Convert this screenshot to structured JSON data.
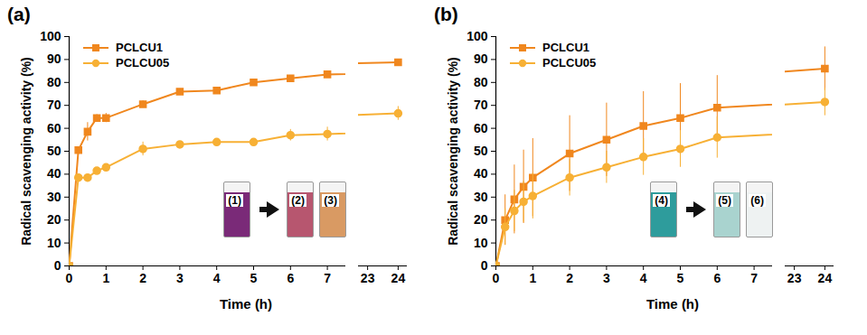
{
  "chart_data": [
    {
      "type": "line",
      "title": "(a)",
      "x_label": "Time (h)",
      "y_label": "Radical scavenging activity (%)",
      "x": [
        0,
        0.25,
        0.5,
        0.75,
        1,
        2,
        3,
        4,
        5,
        6,
        7,
        24
      ],
      "xlim": [
        0,
        24.3
      ],
      "x_break": [
        7.5,
        22.7
      ],
      "xticks": [
        0,
        1,
        2,
        3,
        4,
        5,
        6,
        7,
        23,
        24
      ],
      "ylim": [
        0,
        100
      ],
      "yticks": [
        0,
        10,
        20,
        30,
        40,
        50,
        60,
        70,
        80,
        90,
        100
      ],
      "legend": "top-left",
      "series": [
        {
          "name": "PCLCU1",
          "color": "#f0871e",
          "marker": "square",
          "values": [
            0,
            50.5,
            58.5,
            64.5,
            64.5,
            70.5,
            76,
            76.5,
            80,
            81.8,
            83.5,
            88.8
          ],
          "errors": [
            0,
            1,
            4,
            1.5,
            2,
            1.5,
            0.5,
            0.5,
            0.5,
            1,
            0.5,
            0.5
          ]
        },
        {
          "name": "PCLCU05",
          "color": "#f7b035",
          "marker": "circle",
          "values": [
            0,
            38.5,
            38.5,
            41.5,
            43,
            51,
            53,
            54,
            54,
            57,
            57.5,
            66.5
          ],
          "errors": [
            0,
            1,
            1,
            1,
            1,
            3,
            1,
            1,
            1.5,
            2.5,
            3,
            3
          ]
        }
      ],
      "annotations": [
        "(1)",
        "(2)",
        "(3)"
      ]
    },
    {
      "type": "line",
      "title": "(b)",
      "x_label": "Time (h)",
      "y_label": "Radical scavenging activity (%)",
      "x": [
        0,
        0.25,
        0.5,
        0.75,
        1,
        2,
        3,
        4,
        5,
        6,
        24
      ],
      "xlim": [
        0,
        24.3
      ],
      "x_break": [
        7.5,
        22.7
      ],
      "xticks": [
        0,
        1,
        2,
        3,
        4,
        5,
        6,
        7,
        23,
        24
      ],
      "ylim": [
        0,
        100
      ],
      "yticks": [
        0,
        10,
        20,
        30,
        40,
        50,
        60,
        70,
        80,
        90,
        100
      ],
      "legend": "top-left",
      "series": [
        {
          "name": "PCLCU1",
          "color": "#f0871e",
          "marker": "square",
          "values": [
            0,
            20,
            29,
            34.5,
            38.5,
            49,
            55,
            61,
            64.5,
            69,
            86
          ],
          "errors": [
            0,
            11,
            15,
            16,
            17,
            16.5,
            16,
            15,
            15,
            14,
            9.5
          ]
        },
        {
          "name": "PCLCU05",
          "color": "#f7b035",
          "marker": "circle",
          "values": [
            0,
            17,
            24,
            28,
            30.5,
            38.5,
            43,
            47.5,
            51,
            56,
            71.5
          ],
          "errors": [
            0,
            8,
            9,
            9,
            10,
            8,
            7,
            8,
            8,
            9,
            6
          ]
        }
      ],
      "annotations": [
        "(4)",
        "(5)",
        "(6)"
      ]
    }
  ]
}
